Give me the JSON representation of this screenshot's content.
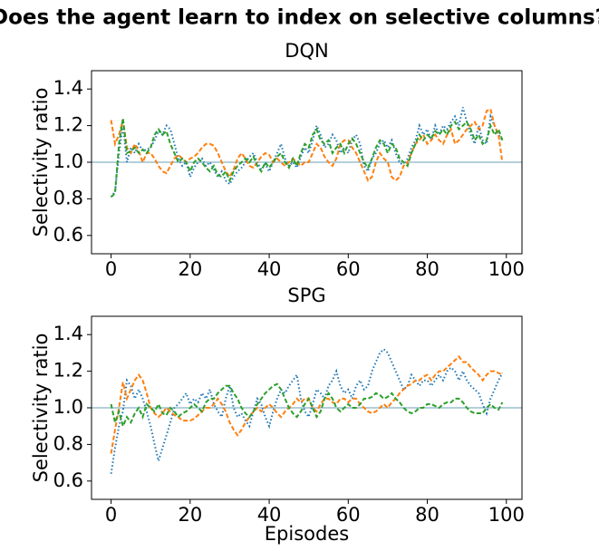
{
  "title": "Does the agent learn to index on selective columns?",
  "chart_data": [
    {
      "type": "line",
      "title": "DQN",
      "ylabel": "Selectivity ratio",
      "x": [
        0,
        1,
        2,
        3,
        4,
        5,
        6,
        7,
        8,
        9,
        10,
        11,
        12,
        13,
        14,
        15,
        16,
        17,
        18,
        19,
        20,
        21,
        22,
        23,
        24,
        25,
        26,
        27,
        28,
        29,
        30,
        31,
        32,
        33,
        34,
        35,
        36,
        37,
        38,
        39,
        40,
        41,
        42,
        43,
        44,
        45,
        46,
        47,
        48,
        49,
        50,
        51,
        52,
        53,
        54,
        55,
        56,
        57,
        58,
        59,
        60,
        61,
        62,
        63,
        64,
        65,
        66,
        67,
        68,
        69,
        70,
        71,
        72,
        73,
        74,
        75,
        76,
        77,
        78,
        79,
        80,
        81,
        82,
        83,
        84,
        85,
        86,
        87,
        88,
        89,
        90,
        91,
        92,
        93,
        94,
        95,
        96,
        97,
        98,
        99
      ],
      "xlim": [
        -4.95,
        103.95
      ],
      "xticks": [
        0,
        20,
        40,
        60,
        80,
        100
      ],
      "ylim": [
        0.5,
        1.5
      ],
      "yticks": [
        0.6,
        0.8,
        {
          "value": 1,
          "label": "1.0"
        },
        1.2,
        1.4
      ],
      "hline": 1,
      "hline_color": "#6a9fb5",
      "series": [
        {
          "color": "#1f77b4",
          "linestyle": "dotted",
          "values": [
            0.81,
            0.84,
            1.05,
            1.2,
            1.0,
            1.08,
            1.05,
            1.1,
            1.06,
            1.07,
            1.08,
            1.12,
            1.17,
            1.15,
            1.2,
            1.18,
            1.1,
            1.02,
            0.98,
            1.0,
            0.92,
            0.97,
            1.0,
            1.02,
            0.98,
            1.0,
            0.96,
            0.92,
            0.95,
            0.9,
            0.88,
            0.92,
            0.95,
            0.97,
            1.0,
            1.03,
            1.05,
            1.0,
            0.96,
            0.99,
            0.95,
            1.0,
            1.05,
            1.1,
            1.02,
            0.98,
            1.0,
            0.97,
            1.03,
            1.08,
            1.05,
            1.12,
            1.2,
            1.15,
            1.08,
            1.1,
            1.15,
            1.12,
            1.05,
            1.08,
            1.05,
            1.12,
            1.15,
            1.1,
            0.98,
            0.95,
            1.02,
            1.05,
            1.1,
            1.12,
            1.08,
            1.12,
            1.05,
            1.0,
            0.98,
            1.02,
            1.08,
            1.12,
            1.2,
            1.15,
            1.18,
            1.12,
            1.2,
            1.15,
            1.2,
            1.18,
            1.22,
            1.25,
            1.2,
            1.3,
            1.22,
            1.15,
            1.1,
            1.2,
            1.12,
            1.1,
            1.25,
            1.2,
            1.15,
            1.12
          ]
        },
        {
          "color": "#ff7f0e",
          "linestyle": "dashed",
          "values": [
            1.23,
            1.1,
            1.15,
            1.23,
            1.08,
            1.05,
            1.1,
            1.06,
            1.0,
            1.05,
            1.05,
            1.02,
            0.98,
            0.95,
            0.94,
            0.98,
            1.02,
            1.04,
            1.02,
            1.0,
            1.02,
            1.03,
            1.05,
            1.08,
            1.1,
            1.1,
            1.09,
            1.05,
            1.0,
            0.95,
            0.92,
            0.96,
            1.02,
            1.05,
            1.02,
            0.98,
            0.97,
            1.0,
            1.03,
            1.05,
            1.04,
            1.0,
            1.02,
            1.0,
            0.98,
            1.0,
            1.02,
            1.0,
            0.98,
            1.0,
            1.0,
            1.05,
            1.1,
            1.08,
            1.03,
            1.0,
            0.98,
            1.02,
            1.1,
            1.12,
            1.12,
            1.08,
            1.05,
            1.0,
            0.95,
            0.9,
            0.92,
            1.0,
            1.05,
            1.02,
            1.0,
            0.92,
            0.9,
            0.92,
            0.98,
            1.0,
            1.05,
            1.1,
            1.12,
            1.15,
            1.1,
            1.12,
            1.15,
            1.12,
            1.1,
            1.15,
            1.18,
            1.1,
            1.12,
            1.15,
            1.18,
            1.2,
            1.22,
            1.18,
            1.2,
            1.28,
            1.29,
            1.2,
            1.15,
            1.0
          ]
        },
        {
          "color": "#2ca02c",
          "linestyle": "dashed",
          "values": [
            0.81,
            0.83,
            1.1,
            1.24,
            1.05,
            1.06,
            1.08,
            1.05,
            1.07,
            1.05,
            1.08,
            1.15,
            1.18,
            1.15,
            1.17,
            1.1,
            1.05,
            1.0,
            1.02,
            1.0,
            0.95,
            1.0,
            1.02,
            1.0,
            0.97,
            0.95,
            0.98,
            0.93,
            0.92,
            0.95,
            0.9,
            0.95,
            0.98,
            1.0,
            1.02,
            1.0,
            1.03,
            0.98,
            0.95,
            1.0,
            0.97,
            1.0,
            1.03,
            1.05,
            1.0,
            0.97,
            1.02,
            0.98,
            1.05,
            1.1,
            1.08,
            1.15,
            1.18,
            1.12,
            1.1,
            1.12,
            1.05,
            1.08,
            1.1,
            1.05,
            1.1,
            1.13,
            1.1,
            1.05,
            1.0,
            0.97,
            1.02,
            1.08,
            1.12,
            1.1,
            1.05,
            1.1,
            1.08,
            1.02,
            1.0,
            0.98,
            1.05,
            1.1,
            1.15,
            1.12,
            1.15,
            1.13,
            1.17,
            1.15,
            1.18,
            1.15,
            1.2,
            1.22,
            1.18,
            1.2,
            1.22,
            1.18,
            1.12,
            1.15,
            1.1,
            1.12,
            1.2,
            1.15,
            1.18,
            1.12
          ]
        }
      ]
    },
    {
      "type": "line",
      "title": "SPG",
      "ylabel": "Selectivity ratio",
      "xlabel": "Episodes",
      "x": [
        0,
        1,
        2,
        3,
        4,
        5,
        6,
        7,
        8,
        9,
        10,
        11,
        12,
        13,
        14,
        15,
        16,
        17,
        18,
        19,
        20,
        21,
        22,
        23,
        24,
        25,
        26,
        27,
        28,
        29,
        30,
        31,
        32,
        33,
        34,
        35,
        36,
        37,
        38,
        39,
        40,
        41,
        42,
        43,
        44,
        45,
        46,
        47,
        48,
        49,
        50,
        51,
        52,
        53,
        54,
        55,
        56,
        57,
        58,
        59,
        60,
        61,
        62,
        63,
        64,
        65,
        66,
        67,
        68,
        69,
        70,
        71,
        72,
        73,
        74,
        75,
        76,
        77,
        78,
        79,
        80,
        81,
        82,
        83,
        84,
        85,
        86,
        87,
        88,
        89,
        90,
        91,
        92,
        93,
        94,
        95,
        96,
        97,
        98,
        99
      ],
      "xlim": [
        -4.95,
        103.95
      ],
      "xticks": [
        0,
        20,
        40,
        60,
        80,
        100
      ],
      "ylim": [
        0.5,
        1.5
      ],
      "yticks": [
        0.6,
        0.8,
        {
          "value": 1,
          "label": "1.0"
        },
        1.2,
        1.4
      ],
      "hline": 1,
      "hline_color": "#6a9fb5",
      "series": [
        {
          "color": "#1f77b4",
          "linestyle": "dotted",
          "values": [
            0.64,
            0.78,
            0.9,
            0.98,
            1.15,
            1.12,
            1.05,
            1.1,
            1.05,
            0.98,
            0.9,
            0.8,
            0.71,
            0.78,
            0.85,
            0.92,
            1.0,
            1.02,
            1.05,
            1.08,
            1.02,
            1.05,
            1.03,
            1.08,
            1.05,
            1.1,
            1.02,
            0.98,
            0.95,
            1.05,
            1.12,
            1.0,
            0.95,
            0.97,
            0.93,
            0.9,
            0.98,
            1.05,
            1.02,
            0.95,
            0.9,
            0.98,
            1.05,
            1.1,
            1.08,
            1.12,
            1.15,
            1.18,
            1.05,
            0.98,
            0.95,
            1.02,
            1.1,
            1.08,
            1.05,
            1.12,
            1.15,
            1.2,
            1.12,
            1.08,
            1.1,
            1.05,
            1.12,
            1.15,
            1.1,
            1.12,
            1.2,
            1.25,
            1.3,
            1.32,
            1.3,
            1.25,
            1.2,
            1.15,
            1.1,
            1.12,
            1.18,
            1.15,
            1.12,
            1.15,
            1.15,
            1.12,
            1.15,
            1.18,
            1.15,
            1.2,
            1.22,
            1.2,
            1.15,
            1.2,
            1.15,
            1.12,
            1.1,
            1.08,
            1.02,
            0.97,
            1.05,
            1.1,
            1.15,
            1.19
          ]
        },
        {
          "color": "#ff7f0e",
          "linestyle": "dashed",
          "values": [
            0.75,
            0.88,
            1.0,
            1.14,
            1.05,
            1.1,
            1.15,
            1.18,
            1.15,
            1.08,
            1.0,
            0.97,
            0.95,
            0.97,
            1.0,
            0.98,
            0.96,
            0.95,
            0.93,
            0.93,
            0.93,
            0.94,
            0.96,
            0.98,
            1.0,
            1.0,
            1.02,
            1.05,
            1.02,
            0.98,
            0.92,
            0.88,
            0.85,
            0.88,
            0.92,
            0.95,
            0.98,
            1.0,
            0.98,
            1.0,
            1.02,
            1.0,
            0.97,
            0.95,
            0.98,
            1.0,
            1.02,
            1.05,
            1.03,
            1.05,
            1.05,
            1.0,
            0.98,
            1.02,
            1.05,
            1.05,
            1.03,
            1.02,
            1.05,
            1.05,
            1.03,
            1.05,
            1.05,
            1.02,
            1.0,
            0.98,
            0.97,
            0.98,
            1.0,
            1.02,
            1.0,
            1.03,
            1.05,
            1.08,
            1.1,
            1.12,
            1.13,
            1.15,
            1.15,
            1.17,
            1.18,
            1.15,
            1.18,
            1.2,
            1.2,
            1.22,
            1.24,
            1.26,
            1.28,
            1.25,
            1.25,
            1.22,
            1.2,
            1.18,
            1.15,
            1.18,
            1.2,
            1.2,
            1.19,
            1.18
          ]
        },
        {
          "color": "#2ca02c",
          "linestyle": "dashed",
          "values": [
            1.02,
            0.92,
            0.98,
            0.9,
            0.95,
            0.92,
            0.97,
            1.0,
            0.95,
            1.02,
            1.0,
            0.98,
            1.02,
            0.97,
            0.96,
            1.0,
            0.98,
            0.95,
            0.97,
            0.98,
            1.0,
            1.02,
            1.0,
            0.98,
            1.03,
            1.05,
            1.05,
            1.08,
            1.1,
            1.12,
            1.12,
            1.08,
            1.05,
            1.0,
            0.97,
            0.95,
            0.98,
            1.02,
            1.05,
            1.08,
            1.1,
            1.12,
            1.13,
            1.1,
            1.05,
            1.0,
            0.97,
            0.95,
            0.98,
            1.02,
            1.05,
            1.0,
            0.95,
            0.98,
            1.05,
            1.08,
            1.05,
            1.0,
            0.98,
            1.0,
            1.02,
            1.0,
            1.0,
            1.02,
            1.05,
            1.05,
            1.06,
            1.08,
            1.07,
            1.05,
            1.06,
            1.08,
            1.05,
            1.03,
            1.0,
            0.98,
            0.97,
            0.98,
            1.0,
            1.0,
            1.02,
            1.02,
            1.01,
            1.0,
            1.02,
            1.03,
            1.03,
            1.05,
            1.05,
            1.03,
            1.0,
            0.98,
            0.97,
            0.97,
            0.97,
            1.0,
            1.02,
            1.0,
            0.99,
            1.03
          ]
        }
      ]
    }
  ]
}
